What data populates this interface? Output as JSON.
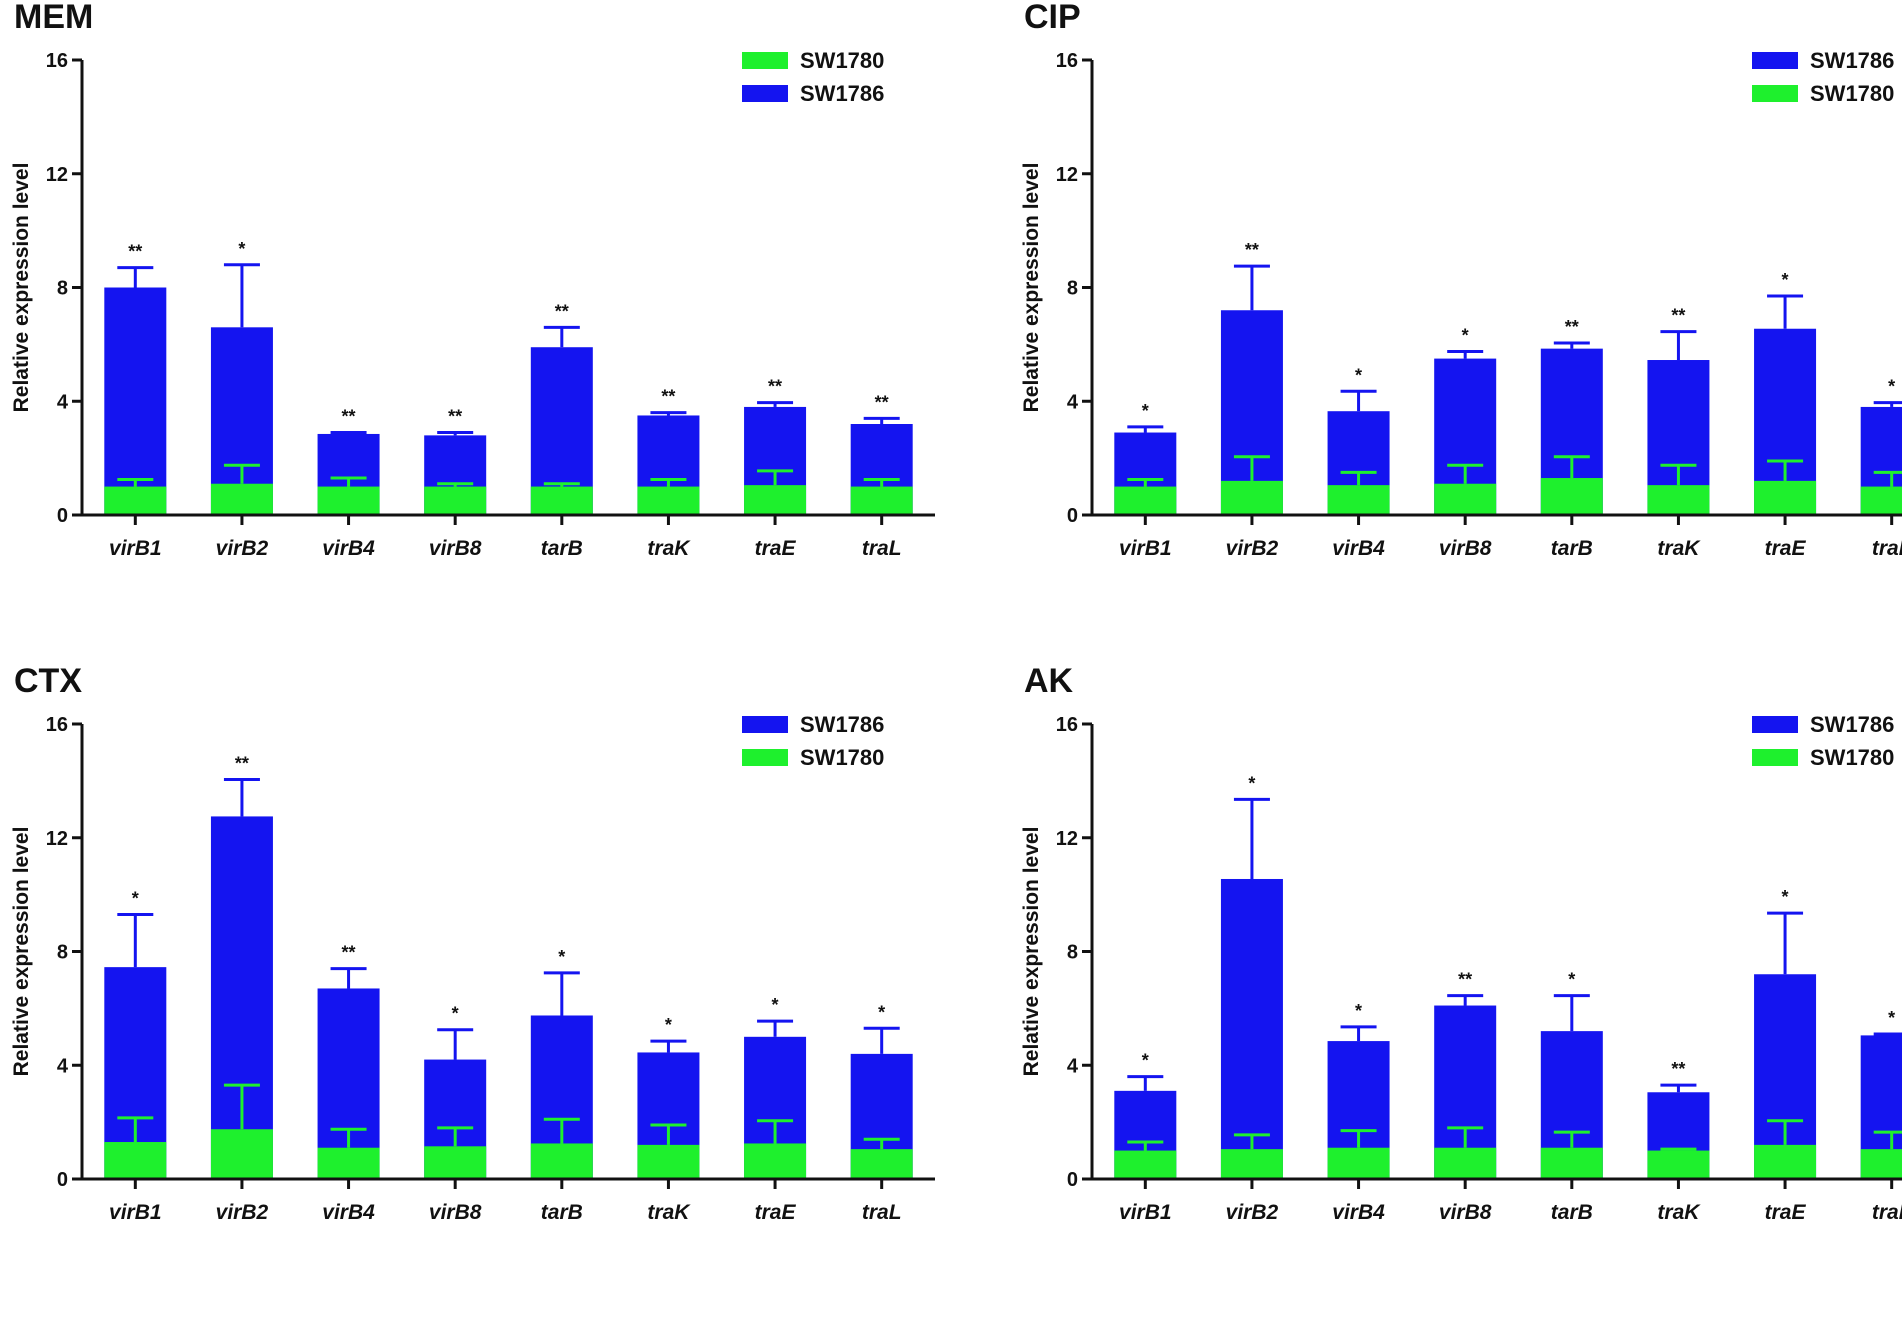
{
  "colors": {
    "blue": "#1414f0",
    "green": "#1ef02d",
    "axis": "#111111"
  },
  "chart_data": [
    {
      "type": "bar",
      "title": "MEM",
      "ylabel": "Relative expression level",
      "xlabel": "",
      "ylim": [
        0,
        16
      ],
      "yticks": [
        "0",
        "4",
        "8",
        "12",
        "16"
      ],
      "categories": [
        "virB1",
        "virB2",
        "virB4",
        "virB8",
        "tarB",
        "traK",
        "traE",
        "traL"
      ],
      "legend": [
        "SW1780",
        "SW1786"
      ],
      "series": [
        {
          "name": "SW1786",
          "values": [
            8.0,
            6.6,
            2.85,
            2.8,
            5.9,
            3.5,
            3.8,
            3.2
          ],
          "errors": [
            0.7,
            2.2,
            0.05,
            0.1,
            0.7,
            0.1,
            0.15,
            0.2
          ]
        },
        {
          "name": "SW1780",
          "values": [
            1.0,
            1.1,
            1.0,
            1.0,
            1.0,
            1.0,
            1.05,
            1.0
          ],
          "errors": [
            0.25,
            0.65,
            0.3,
            0.1,
            0.1,
            0.25,
            0.5,
            0.25
          ]
        }
      ],
      "significance": [
        "**",
        "*",
        "**",
        "**",
        "**",
        "**",
        "**",
        "**"
      ]
    },
    {
      "type": "bar",
      "title": "CIP",
      "ylabel": "Relative expression level",
      "xlabel": "",
      "ylim": [
        0,
        16
      ],
      "yticks": [
        "0",
        "4",
        "8",
        "12",
        "16"
      ],
      "categories": [
        "virB1",
        "virB2",
        "virB4",
        "virB8",
        "tarB",
        "traK",
        "traE",
        "traL"
      ],
      "legend": [
        "SW1786",
        "SW1780"
      ],
      "series": [
        {
          "name": "SW1786",
          "values": [
            2.9,
            7.2,
            3.65,
            5.5,
            5.85,
            5.45,
            6.55,
            3.8
          ],
          "errors": [
            0.2,
            1.55,
            0.7,
            0.25,
            0.2,
            1.0,
            1.15,
            0.15
          ]
        },
        {
          "name": "SW1780",
          "values": [
            1.0,
            1.2,
            1.05,
            1.1,
            1.3,
            1.05,
            1.2,
            1.0
          ],
          "errors": [
            0.25,
            0.85,
            0.45,
            0.65,
            0.75,
            0.7,
            0.7,
            0.5
          ]
        }
      ],
      "significance": [
        "*",
        "**",
        "*",
        "*",
        "**",
        "**",
        "*",
        "*"
      ]
    },
    {
      "type": "bar",
      "title": "CTX",
      "ylabel": "Relative expression level",
      "xlabel": "",
      "ylim": [
        0,
        16
      ],
      "yticks": [
        "0",
        "4",
        "8",
        "12",
        "16"
      ],
      "categories": [
        "virB1",
        "virB2",
        "virB4",
        "virB8",
        "tarB",
        "traK",
        "traE",
        "traL"
      ],
      "legend": [
        "SW1786",
        "SW1780"
      ],
      "series": [
        {
          "name": "SW1786",
          "values": [
            7.45,
            12.75,
            6.7,
            4.2,
            5.75,
            4.45,
            5.0,
            4.4
          ],
          "errors": [
            1.85,
            1.3,
            0.7,
            1.05,
            1.5,
            0.4,
            0.55,
            0.9
          ]
        },
        {
          "name": "SW1780",
          "values": [
            1.3,
            1.75,
            1.1,
            1.15,
            1.25,
            1.2,
            1.25,
            1.05
          ],
          "errors": [
            0.85,
            1.55,
            0.65,
            0.65,
            0.85,
            0.7,
            0.8,
            0.35
          ]
        }
      ],
      "significance": [
        "*",
        "**",
        "**",
        "*",
        "*",
        "*",
        "*",
        "*"
      ]
    },
    {
      "type": "bar",
      "title": "AK",
      "ylabel": "Relative expression level",
      "xlabel": "",
      "ylim": [
        0,
        16
      ],
      "yticks": [
        "0",
        "4",
        "8",
        "12",
        "16"
      ],
      "categories": [
        "virB1",
        "virB2",
        "virB4",
        "virB8",
        "tarB",
        "traK",
        "traE",
        "traL"
      ],
      "legend": [
        "SW1786",
        "SW1780"
      ],
      "series": [
        {
          "name": "SW1786",
          "values": [
            3.1,
            10.55,
            4.85,
            6.1,
            5.2,
            3.05,
            7.2,
            5.05
          ],
          "errors": [
            0.5,
            2.8,
            0.5,
            0.35,
            1.25,
            0.25,
            2.15,
            0.05
          ]
        },
        {
          "name": "SW1780",
          "values": [
            1.0,
            1.05,
            1.1,
            1.1,
            1.1,
            1.0,
            1.2,
            1.05
          ],
          "errors": [
            0.3,
            0.5,
            0.6,
            0.7,
            0.55,
            0.05,
            0.85,
            0.6
          ]
        }
      ],
      "significance": [
        "*",
        "*",
        "*",
        "**",
        "*",
        "**",
        "*",
        "*"
      ]
    }
  ]
}
